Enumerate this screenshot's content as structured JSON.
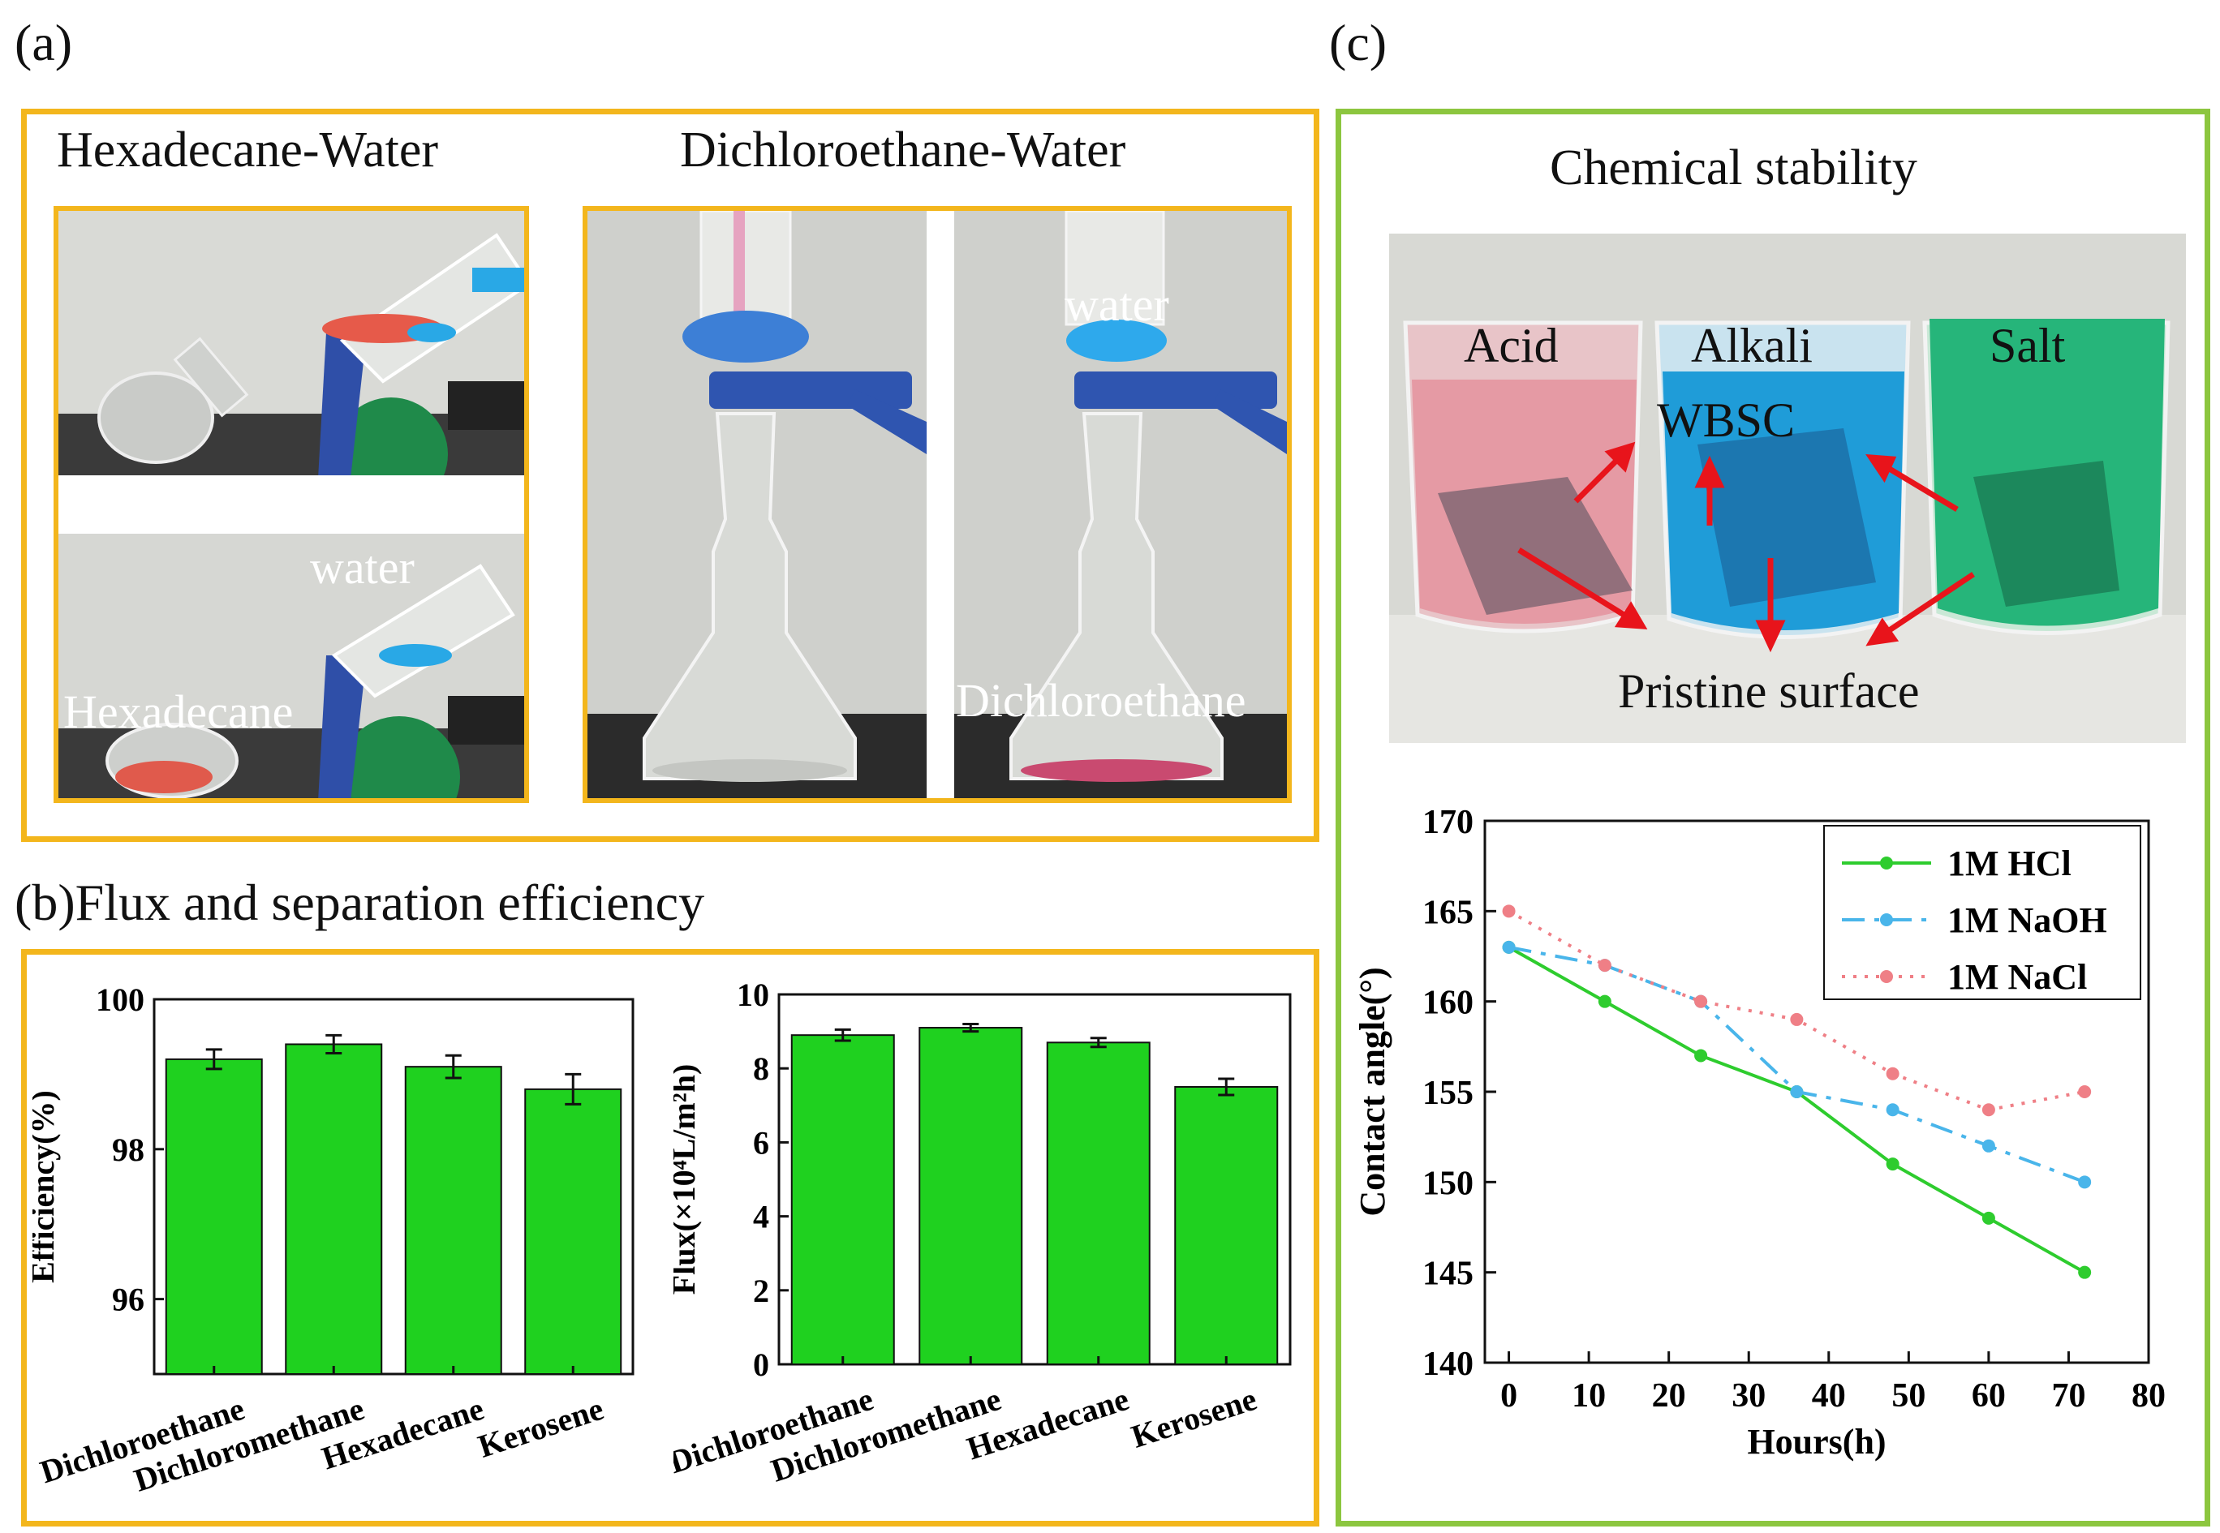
{
  "panel_labels": {
    "a": "(a)",
    "b": "(b)Flux and separation efficiency",
    "c": "(c)"
  },
  "panel_a": {
    "left_heading": "Hexadecane-Water",
    "right_heading": "Dichloroethane-Water",
    "photo_labels": {
      "water_1": "water",
      "hexadecane": "Hexadecane",
      "water_2": "water",
      "dichloroethane": "Dichloroethane"
    }
  },
  "panel_c": {
    "heading": "Chemical stability",
    "photo_labels": {
      "acid": "Acid",
      "alkali": "Alkali",
      "salt": "Salt",
      "wbsc": "WBSC",
      "pristine": "Pristine surface"
    }
  },
  "colors": {
    "bar": "#1fd11f",
    "hcl": "#2ecc2e",
    "naoh": "#49b5ea",
    "nacl": "#ef7f86",
    "frame_a": "#f3b61c",
    "frame_c": "#8cc63f",
    "arrow": "#e8141b"
  },
  "chart_data": [
    {
      "type": "bar",
      "title": "",
      "categories": [
        "Dichloroethane",
        "Dichloromethane",
        "Hexadecane",
        "Kerosene"
      ],
      "values": [
        99.2,
        99.4,
        99.1,
        98.8
      ],
      "errors": [
        0.13,
        0.12,
        0.15,
        0.2
      ],
      "xlabel": "",
      "ylabel": "Efficiency(%)",
      "ylim": [
        95,
        100
      ],
      "yticks": [
        "96",
        "98",
        "100"
      ],
      "ytick_values": [
        96,
        98,
        100
      ]
    },
    {
      "type": "bar",
      "title": "",
      "categories": [
        "Dichloroethane",
        "Dichloromethane",
        "Hexadecane",
        "Kerosene"
      ],
      "values": [
        8.9,
        9.1,
        8.7,
        7.5
      ],
      "errors": [
        0.15,
        0.1,
        0.12,
        0.22
      ],
      "xlabel": "",
      "ylabel": "Flux(×10⁴L/m²h)",
      "ylim": [
        0,
        10
      ],
      "yticks": [
        "0",
        "2",
        "4",
        "6",
        "8",
        "10"
      ],
      "ytick_values": [
        0,
        2,
        4,
        6,
        8,
        10
      ]
    },
    {
      "type": "line",
      "title": "",
      "xlabel": "Hours(h)",
      "ylabel": "Contact angle(°)",
      "xlim": [
        -3,
        80
      ],
      "ylim": [
        140,
        170
      ],
      "xticks": [
        "0",
        "10",
        "20",
        "30",
        "40",
        "50",
        "60",
        "70",
        "80"
      ],
      "xtick_values": [
        0,
        10,
        20,
        30,
        40,
        50,
        60,
        70,
        80
      ],
      "yticks": [
        "140",
        "145",
        "150",
        "155",
        "160",
        "165",
        "170"
      ],
      "ytick_values": [
        140,
        145,
        150,
        155,
        160,
        165,
        170
      ],
      "legend_position": "top-right",
      "x": [
        0,
        12,
        24,
        36,
        48,
        60,
        72
      ],
      "series": [
        {
          "name": "1M HCl",
          "values": [
            163,
            160,
            157,
            155,
            151,
            148,
            145
          ]
        },
        {
          "name": "1M NaOH",
          "values": [
            163,
            162,
            160,
            155,
            154,
            152,
            150
          ]
        },
        {
          "name": "1M NaCl",
          "values": [
            165,
            162,
            160,
            159,
            156,
            154,
            155
          ]
        }
      ]
    }
  ]
}
